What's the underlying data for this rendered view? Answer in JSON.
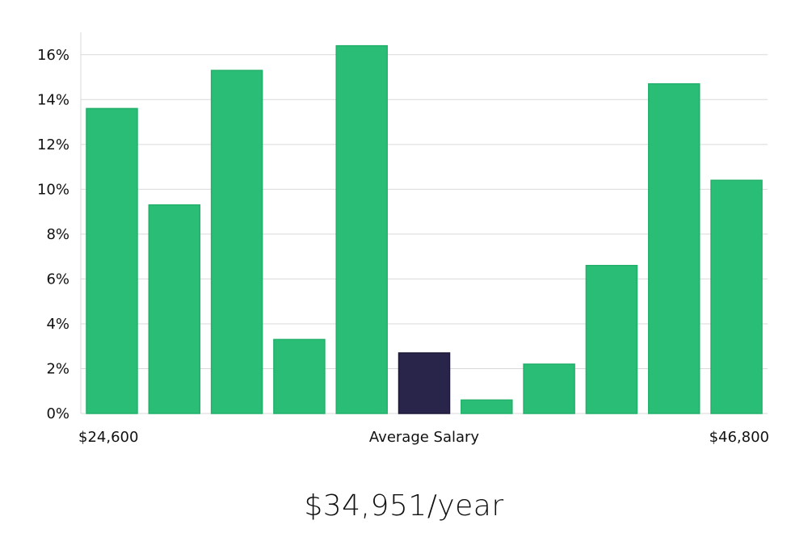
{
  "chart_data": {
    "type": "bar",
    "title": "",
    "xlabel": "",
    "ylabel": "",
    "ylim": [
      0,
      17
    ],
    "y_ticks": [
      0,
      2,
      4,
      6,
      8,
      10,
      12,
      14,
      16
    ],
    "y_tick_suffix": "%",
    "grid": true,
    "values": [
      13.6,
      9.3,
      15.3,
      3.3,
      16.4,
      2.7,
      0.6,
      2.2,
      6.6,
      14.7,
      10.4
    ],
    "highlight_index": 5,
    "x_labels": {
      "left": "$24,600",
      "center": "Average Salary",
      "right": "$46,800"
    },
    "colors": {
      "bar": "#2abd76",
      "bar_border": "#22b06a",
      "highlight": "#29244a",
      "grid": "#d9d9d9",
      "axis": "#d9d9d9"
    }
  },
  "salary": {
    "text": "$34,951/year"
  }
}
